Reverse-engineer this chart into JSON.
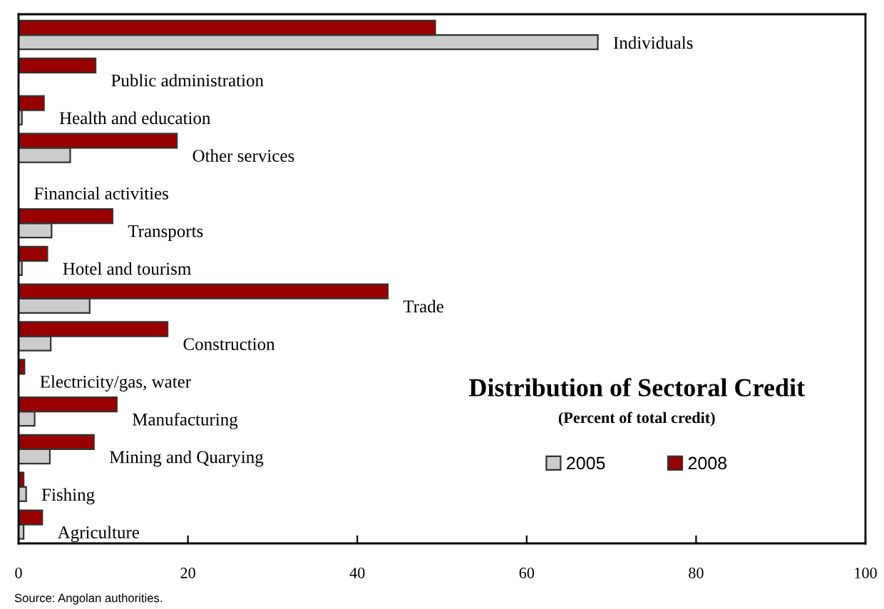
{
  "chart_data": {
    "type": "bar",
    "orientation": "horizontal",
    "title": "Distribution of Sectoral Credit",
    "subtitle": "(Percent of total credit)",
    "categories": [
      "Individuals",
      "Public administration",
      "Health and education",
      "Other services",
      "Financial activities",
      "Transports",
      "Hotel and tourism",
      "Trade",
      "Construction",
      "Electricity/gas, water",
      "Manufacturing",
      "Mining and Quarying",
      "Fishing",
      "Agriculture"
    ],
    "series": [
      {
        "name": "2005",
        "color": "#cccccc",
        "values": [
          68.4,
          null,
          0.4,
          6.1,
          0,
          3.9,
          0.4,
          8.4,
          3.8,
          null,
          1.9,
          3.7,
          0.9,
          0.6
        ]
      },
      {
        "name": "2008",
        "color": "#990000",
        "values": [
          49.2,
          9.1,
          3.0,
          18.7,
          0,
          11.1,
          3.4,
          43.6,
          17.6,
          0.7,
          11.6,
          8.9,
          0.6,
          2.8
        ]
      }
    ],
    "xlim": [
      0,
      100
    ],
    "xticks": [
      0,
      20,
      40,
      60,
      80,
      100
    ],
    "grid": false,
    "legend": "bottom right",
    "annotations": [
      "Source: Angolan authorities."
    ]
  }
}
